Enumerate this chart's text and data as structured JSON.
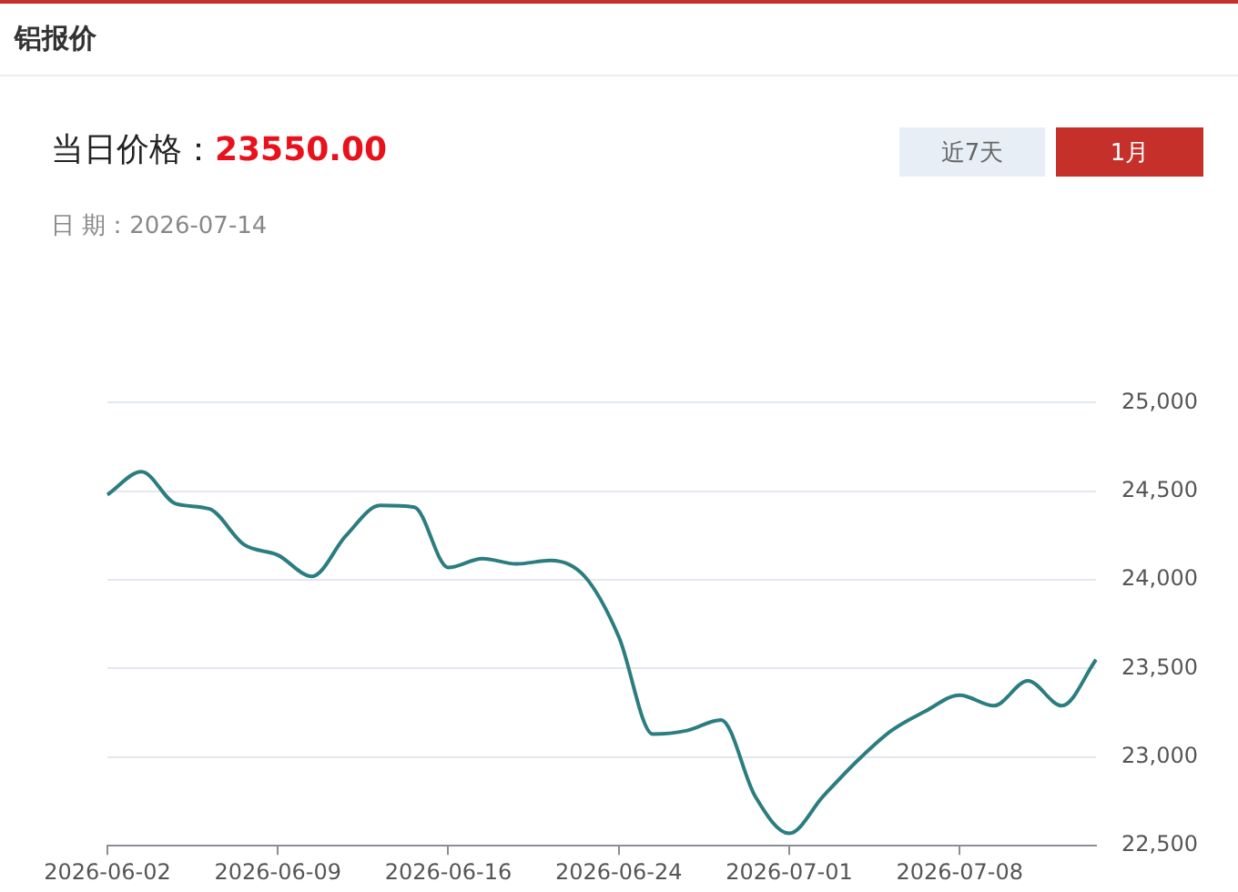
{
  "chart_data": {
    "type": "line",
    "title": "铝报价",
    "annotations": [
      "当日价格：",
      "23550.00",
      "日 期：2026-07-14",
      "近7天",
      "1月"
    ],
    "categories": [
      "2026-06-02",
      null,
      null,
      null,
      null,
      "2026-06-09",
      null,
      null,
      null,
      null,
      "2026-06-16",
      null,
      null,
      null,
      null,
      "2026-06-24",
      null,
      null,
      null,
      null,
      "2026-07-01",
      null,
      null,
      null,
      null,
      "2026-07-08",
      null,
      null,
      null,
      null
    ],
    "series": [
      {
        "color": "#2b7d80",
        "values": [
          24480,
          24610,
          24430,
          24400,
          24200,
          24140,
          24020,
          24250,
          24420,
          24410,
          24070,
          24120,
          24090,
          24110,
          24020,
          23680,
          23130,
          23150,
          23210,
          22780,
          22570,
          22780,
          22980,
          23150,
          23260,
          23350,
          23290,
          23430,
          23290,
          23550
        ]
      }
    ],
    "ylim": [
      22500,
      25000
    ],
    "yticks": [
      {
        "value": 22500,
        "label": "22,500"
      },
      {
        "value": 23000,
        "label": "23,000"
      },
      {
        "value": 23500,
        "label": "23,500"
      },
      {
        "value": 24000,
        "label": "24,000"
      },
      {
        "value": 24500,
        "label": "24,500"
      },
      {
        "value": 25000,
        "label": "25,000"
      }
    ],
    "grid": "y",
    "marker": "none",
    "line_style": "solid"
  }
}
